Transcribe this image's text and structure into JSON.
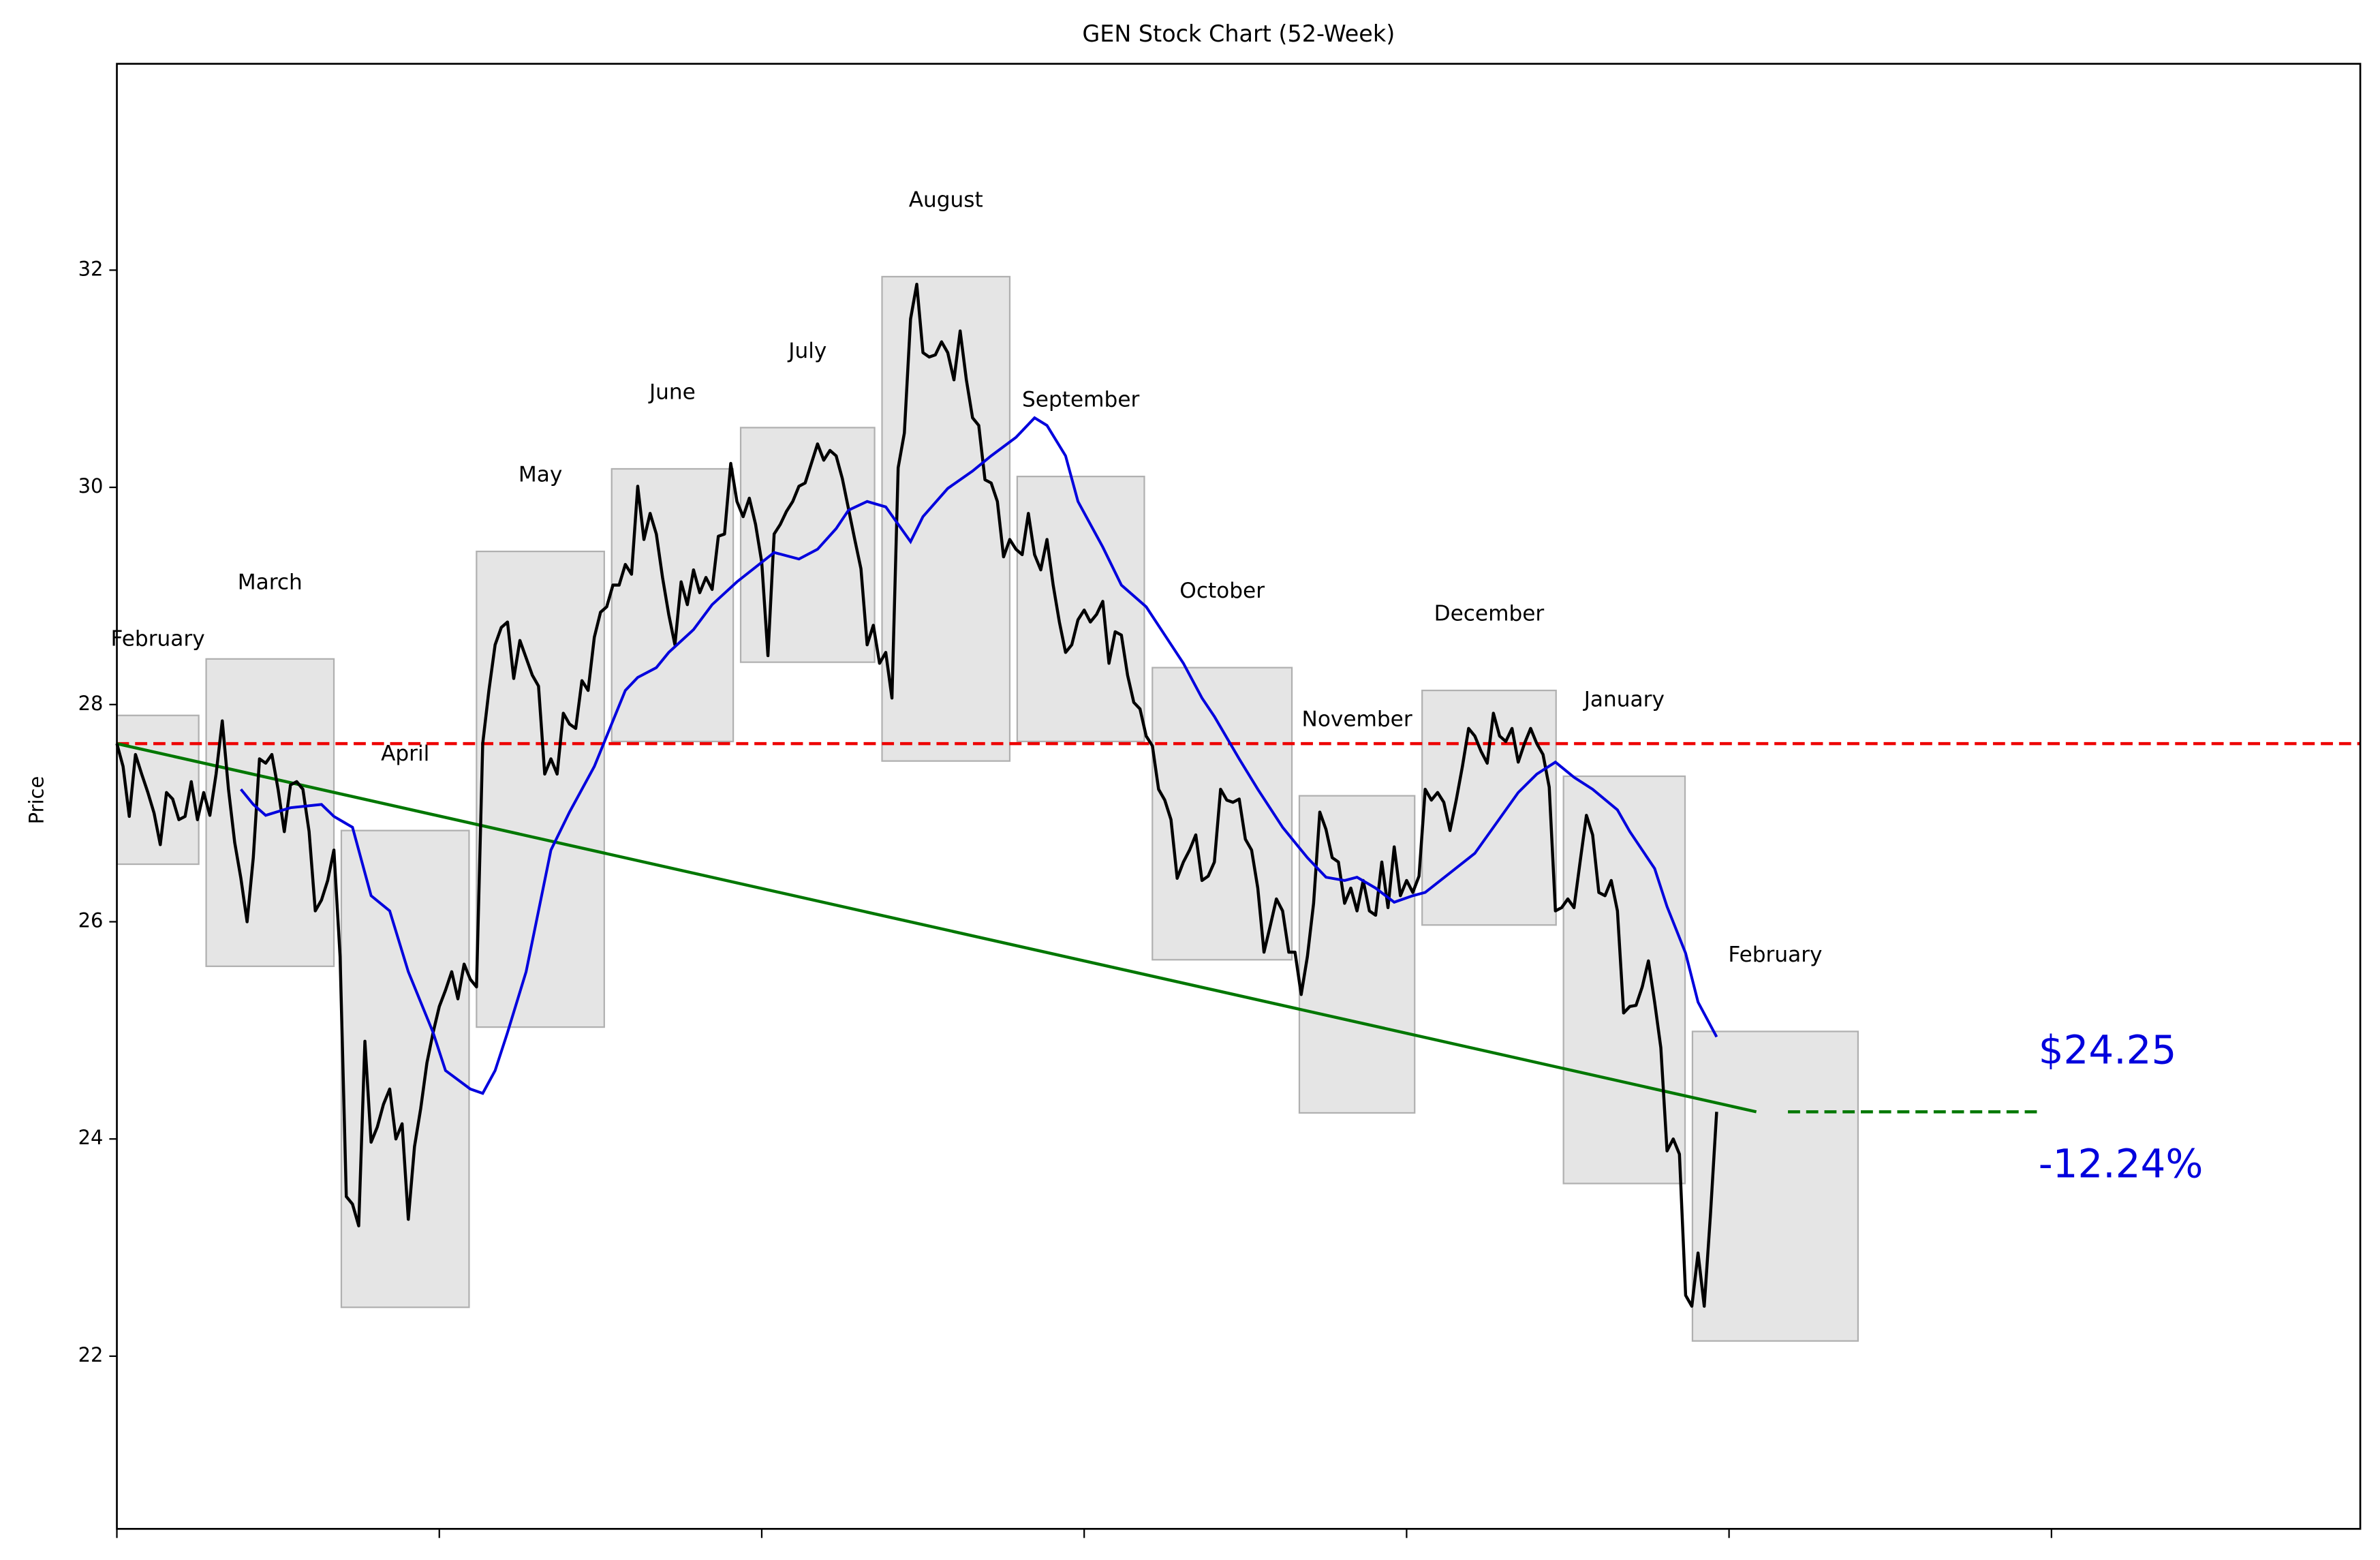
{
  "chart_data": {
    "type": "line",
    "title": "GEN Stock Chart (52-Week)",
    "y_label": "Price",
    "color": "#000000",
    "values": [
      27.64,
      27.43,
      26.97,
      27.54,
      27.36,
      27.19,
      27.0,
      26.71,
      27.19,
      27.13,
      26.94,
      26.97,
      27.29,
      26.94,
      27.19,
      26.98,
      27.36,
      27.85,
      27.22,
      26.73,
      26.4,
      26.0,
      26.59,
      27.5,
      27.46,
      27.54,
      27.22,
      26.83,
      27.26,
      27.29,
      27.22,
      26.83,
      26.1,
      26.2,
      26.38,
      26.66,
      25.68,
      23.47,
      23.4,
      23.2,
      24.9,
      23.97,
      24.11,
      24.32,
      24.46,
      24.0,
      24.14,
      23.26,
      23.93,
      24.28,
      24.7,
      24.98,
      25.22,
      25.37,
      25.54,
      25.29,
      25.61,
      25.47,
      25.4,
      27.64,
      28.13,
      28.55,
      28.71,
      28.76,
      28.24,
      28.59,
      28.43,
      28.27,
      28.17,
      27.36,
      27.5,
      27.36,
      27.92,
      27.82,
      27.78,
      28.22,
      28.13,
      28.62,
      28.85,
      28.9,
      29.1,
      29.1,
      29.29,
      29.2,
      30.01,
      29.52,
      29.76,
      29.57,
      29.17,
      28.83,
      28.55,
      29.13,
      28.92,
      29.24,
      29.03,
      29.17,
      29.06,
      29.55,
      29.57,
      30.22,
      29.87,
      29.73,
      29.9,
      29.66,
      29.31,
      28.45,
      29.57,
      29.66,
      29.78,
      29.87,
      30.01,
      30.04,
      30.22,
      30.4,
      30.25,
      30.34,
      30.29,
      30.08,
      29.8,
      29.52,
      29.25,
      28.55,
      28.73,
      28.38,
      28.48,
      28.06,
      30.18,
      30.5,
      31.55,
      31.87,
      31.24,
      31.2,
      31.22,
      31.34,
      31.24,
      30.99,
      31.44,
      30.99,
      30.64,
      30.57,
      30.07,
      30.04,
      29.87,
      29.36,
      29.52,
      29.43,
      29.38,
      29.76,
      29.38,
      29.24,
      29.52,
      29.1,
      28.76,
      28.48,
      28.55,
      28.78,
      28.87,
      28.76,
      28.83,
      28.95,
      28.38,
      28.67,
      28.64,
      28.27,
      28.02,
      27.96,
      27.71,
      27.62,
      27.22,
      27.12,
      26.94,
      26.4,
      26.55,
      26.66,
      26.8,
      26.38,
      26.42,
      26.55,
      27.22,
      27.12,
      27.1,
      27.13,
      26.76,
      26.66,
      26.31,
      25.72,
      25.96,
      26.21,
      26.1,
      25.72,
      25.72,
      25.33,
      25.68,
      26.17,
      27.01,
      26.85,
      26.59,
      26.55,
      26.17,
      26.31,
      26.1,
      26.38,
      26.1,
      26.06,
      26.55,
      26.13,
      26.69,
      26.24,
      26.38,
      26.27,
      26.42,
      27.22,
      27.12,
      27.19,
      27.1,
      26.84,
      27.12,
      27.43,
      27.78,
      27.71,
      27.57,
      27.46,
      27.92,
      27.71,
      27.66,
      27.78,
      27.47,
      27.64,
      27.78,
      27.64,
      27.54,
      27.24,
      26.1,
      26.13,
      26.21,
      26.13,
      26.56,
      26.98,
      26.8,
      26.27,
      26.24,
      26.38,
      26.1,
      25.16,
      25.22,
      25.23,
      25.4,
      25.64,
      25.26,
      24.84,
      23.89,
      24.0,
      23.86,
      22.56,
      22.46,
      22.95,
      22.46,
      23.3,
      24.25
    ],
    "moving_average": {
      "color": "#0000dd",
      "x": [
        20,
        22,
        24,
        28,
        33,
        35,
        38,
        41,
        44,
        47,
        51,
        53,
        57,
        59,
        61,
        63,
        66,
        68,
        70,
        73,
        77,
        79,
        82,
        84,
        87,
        89,
        93,
        96,
        100,
        104,
        106,
        110,
        113,
        116,
        118,
        121,
        124,
        128,
        130,
        134,
        138,
        141,
        145,
        148,
        150,
        153,
        155,
        159,
        162,
        166,
        169,
        172,
        175,
        177,
        181,
        184,
        188,
        192,
        195,
        198,
        200,
        203,
        206,
        209,
        211,
        215,
        219,
        222,
        226,
        229,
        232,
        235,
        238,
        242,
        244,
        248,
        250,
        253,
        255,
        258
      ],
      "values": [
        27.22,
        27.08,
        26.98,
        27.05,
        27.08,
        26.97,
        26.87,
        26.24,
        26.1,
        25.54,
        24.98,
        24.63,
        24.46,
        24.42,
        24.63,
        24.98,
        25.54,
        26.1,
        26.66,
        27.01,
        27.43,
        27.71,
        28.13,
        28.25,
        28.34,
        28.48,
        28.69,
        28.92,
        29.13,
        29.31,
        29.4,
        29.34,
        29.43,
        29.62,
        29.79,
        29.87,
        29.82,
        29.5,
        29.73,
        29.99,
        30.15,
        30.29,
        30.46,
        30.64,
        30.57,
        30.29,
        29.87,
        29.45,
        29.1,
        28.9,
        28.64,
        28.38,
        28.06,
        27.89,
        27.5,
        27.22,
        26.87,
        26.59,
        26.41,
        26.38,
        26.41,
        26.31,
        26.18,
        26.24,
        26.27,
        26.45,
        26.63,
        26.87,
        27.19,
        27.36,
        27.47,
        27.33,
        27.22,
        27.03,
        26.83,
        26.49,
        26.14,
        25.71,
        25.26,
        24.94
      ]
    },
    "reference_line": {
      "value": 27.64,
      "color": "#ee0000"
    },
    "trend_line": {
      "x": [
        0,
        264.4
      ],
      "values": [
        27.64,
        24.25
      ],
      "color": "#007700"
    },
    "projection": {
      "x": [
        269.5,
        309.9
      ],
      "value": 24.25,
      "color": "#007700"
    },
    "annotations": [
      {
        "text": "$24.25",
        "color": "#0000dd"
      },
      {
        "text": "-12.24%",
        "color": "#0000dd"
      }
    ],
    "months": [
      {
        "label": "February",
        "x": [
          0,
          13.2
        ],
        "high": 27.9,
        "low": 26.53
      },
      {
        "label": "March",
        "x": [
          14.4,
          35.0
        ],
        "high": 28.42,
        "low": 25.59
      },
      {
        "label": "April",
        "x": [
          36.2,
          56.8
        ],
        "high": 26.84,
        "low": 22.45
      },
      {
        "label": "May",
        "x": [
          58.0,
          78.6
        ],
        "high": 29.41,
        "low": 25.03
      },
      {
        "label": "June",
        "x": [
          79.8,
          99.4
        ],
        "high": 30.17,
        "low": 27.66
      },
      {
        "label": "July",
        "x": [
          100.6,
          122.2
        ],
        "high": 30.55,
        "low": 28.39
      },
      {
        "label": "August",
        "x": [
          123.4,
          144.0
        ],
        "high": 31.94,
        "low": 27.48
      },
      {
        "label": "September",
        "x": [
          145.2,
          165.7
        ],
        "high": 30.1,
        "low": 27.66
      },
      {
        "label": "October",
        "x": [
          167.0,
          189.5
        ],
        "high": 28.34,
        "low": 25.65
      },
      {
        "label": "November",
        "x": [
          190.7,
          209.3
        ],
        "high": 27.16,
        "low": 24.24
      },
      {
        "label": "December",
        "x": [
          210.5,
          232.1
        ],
        "high": 28.13,
        "low": 25.97
      },
      {
        "label": "January",
        "x": [
          233.3,
          252.9
        ],
        "high": 27.34,
        "low": 23.59
      },
      {
        "label": "February",
        "x": [
          254.1,
          280.8
        ],
        "high": 24.99,
        "low": 22.14
      }
    ],
    "xlim": [
      0,
      361.8
    ],
    "xticks": [
      0,
      52,
      104,
      156,
      208,
      260,
      312
    ],
    "ylim": [
      20.41,
      33.9
    ],
    "yticks": [
      22,
      24,
      26,
      28,
      30,
      32
    ]
  }
}
